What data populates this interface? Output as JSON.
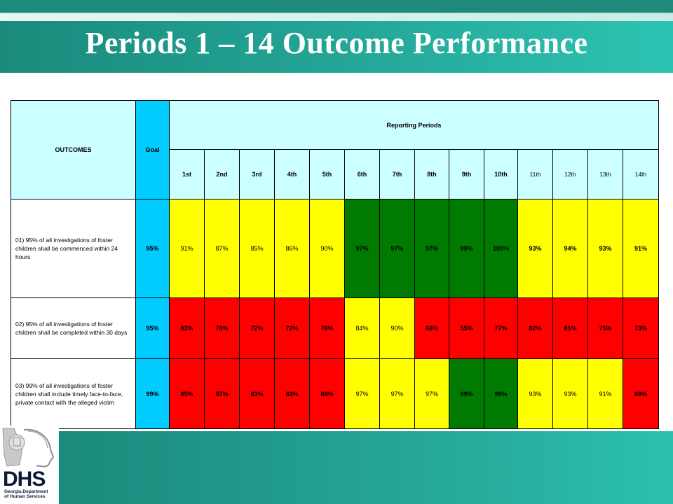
{
  "title": "Periods 1 – 14 Outcome Performance",
  "table": {
    "header": {
      "outcomes": "OUTCOMES",
      "goal": "Goal",
      "reporting_periods": "Reporting Periods",
      "periods": [
        "1st",
        "2nd",
        "3rd",
        "4th",
        "5th",
        "6th",
        "7th",
        "8th",
        "9th",
        "10th",
        "11th",
        "12th",
        "13th",
        "14th"
      ]
    },
    "rows": [
      {
        "outcome": "01) 95% of all investigations of  foster children shall be commenced within 24 hours",
        "goal": "95%",
        "values": [
          "91%",
          "87%",
          "85%",
          "86%",
          "90%",
          "97%",
          "97%",
          "97%",
          "99%",
          "100%",
          "93%",
          "94%",
          "93%",
          "91%"
        ],
        "colors": [
          "yellow",
          "yellow",
          "yellow",
          "yellow",
          "yellow",
          "green",
          "green",
          "green",
          "green",
          "green",
          "yellow",
          "yellow",
          "yellow",
          "yellow"
        ]
      },
      {
        "outcome": "02) 95% of all investigations of  foster children shall be completed within 30 days",
        "goal": "95%",
        "values": [
          "83%",
          "78%",
          "72%",
          "72%",
          "76%",
          "84%",
          "90%",
          "66%",
          "55%",
          "77%",
          "82%",
          "81%",
          "75%",
          "73%"
        ],
        "colors": [
          "red",
          "red",
          "red",
          "red",
          "red",
          "yellow",
          "yellow",
          "red",
          "red",
          "red",
          "red",
          "red",
          "red",
          "red"
        ]
      },
      {
        "outcome": "03) 99% of all investigations of  foster children shall include timely face-to-face, private contact with the alleged victim",
        "goal": "99%",
        "values": [
          "85%",
          "87%",
          "83%",
          "83%",
          "88%",
          "97%",
          "97%",
          "97%",
          "99%",
          "99%",
          "93%",
          "93%",
          "91%",
          "88%"
        ],
        "colors": [
          "red",
          "red",
          "red",
          "red",
          "red",
          "yellow",
          "yellow",
          "yellow",
          "green",
          "green",
          "yellow",
          "yellow",
          "yellow",
          "red"
        ]
      }
    ]
  },
  "logo": {
    "abbr": "DHS",
    "line1": "Georgia Department",
    "line2": "of Human Services"
  },
  "colors": {
    "teal": "#23a596",
    "yellow": "#ffff00",
    "red": "#ff0000",
    "green": "#007a00",
    "cyan": "#ccffff",
    "goal_blue": "#00ccff"
  }
}
